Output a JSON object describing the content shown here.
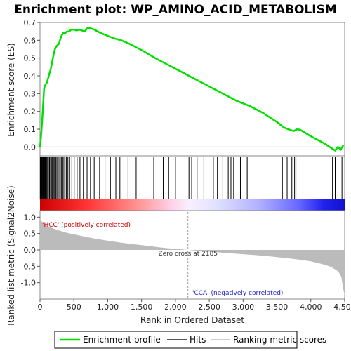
{
  "chart_data": {
    "type": "line",
    "title": "Enrichment plot: WP_AMINO_ACID_METABOLISM",
    "xlabel": "Rank in Ordered Dataset",
    "xlim": [
      0,
      4500
    ],
    "x_ticks": [
      "0",
      "500",
      "1,000",
      "1,500",
      "2,000",
      "2,500",
      "3,000",
      "3,500",
      "4,000",
      "4,500"
    ],
    "es_panel": {
      "ylabel": "Enrichment score (ES)",
      "ylim": [
        -0.05,
        0.7
      ],
      "y_ticks": [
        "0.0",
        "0.1",
        "0.2",
        "0.3",
        "0.4",
        "0.5",
        "0.6",
        "0.7"
      ],
      "series_name": "Enrichment profile",
      "color": "#00e000",
      "x": [
        0,
        20,
        40,
        60,
        80,
        100,
        130,
        160,
        190,
        220,
        250,
        280,
        310,
        340,
        370,
        400,
        430,
        460,
        500,
        540,
        580,
        620,
        660,
        700,
        740,
        800,
        900,
        1000,
        1100,
        1200,
        1320,
        1500,
        1700,
        1900,
        2100,
        2300,
        2500,
        2700,
        2900,
        3100,
        3300,
        3500,
        3600,
        3700,
        3750,
        3800,
        3850,
        4000,
        4200,
        4320,
        4360,
        4400,
        4440,
        4480
      ],
      "y": [
        0.0,
        0.08,
        0.2,
        0.33,
        0.35,
        0.36,
        0.4,
        0.44,
        0.5,
        0.55,
        0.57,
        0.58,
        0.62,
        0.64,
        0.64,
        0.65,
        0.65,
        0.66,
        0.66,
        0.655,
        0.66,
        0.655,
        0.65,
        0.668,
        0.668,
        0.66,
        0.64,
        0.625,
        0.61,
        0.6,
        0.58,
        0.545,
        0.5,
        0.46,
        0.42,
        0.38,
        0.34,
        0.3,
        0.26,
        0.23,
        0.19,
        0.14,
        0.11,
        0.095,
        0.09,
        0.1,
        0.095,
        0.06,
        0.02,
        -0.01,
        -0.02,
        0.0,
        -0.015,
        0.01
      ]
    },
    "hits": {
      "series_name": "Hits",
      "positions": [
        5,
        12,
        18,
        25,
        30,
        38,
        44,
        52,
        60,
        68,
        75,
        82,
        90,
        100,
        112,
        125,
        140,
        155,
        168,
        180,
        192,
        205,
        218,
        232,
        248,
        262,
        280,
        300,
        318,
        335,
        352,
        370,
        390,
        412,
        438,
        470,
        505,
        548,
        590,
        640,
        695,
        745,
        800,
        880,
        960,
        1040,
        1120,
        1180,
        1300,
        1420,
        1680,
        1820,
        1900,
        2000,
        2200,
        2240,
        2320,
        2420,
        2560,
        2620,
        2700,
        2780,
        2820,
        2860,
        2960,
        3060,
        3580,
        3650,
        3720,
        3760,
        3780,
        4320,
        4360,
        4460
      ]
    },
    "ranked_metric_panel": {
      "ylabel": "Ranked list metric (Signal2Noise)",
      "ylim": [
        -1.5,
        1.2
      ],
      "y_ticks": [
        "-1.0",
        "-0.5",
        "0.0",
        "0.5",
        "1.0"
      ],
      "series_name": "Ranking metric scores",
      "x": [
        0,
        20,
        60,
        100,
        200,
        300,
        400,
        600,
        800,
        1000,
        1200,
        1400,
        1600,
        1800,
        2000,
        2185,
        2400,
        2600,
        2800,
        3000,
        3200,
        3400,
        3600,
        3800,
        4000,
        4200,
        4300,
        4400,
        4450,
        4480,
        4500
      ],
      "y": [
        0.95,
        0.88,
        0.8,
        0.74,
        0.65,
        0.58,
        0.52,
        0.43,
        0.35,
        0.28,
        0.22,
        0.17,
        0.12,
        0.07,
        0.03,
        0.0,
        -0.04,
        -0.07,
        -0.1,
        -0.13,
        -0.16,
        -0.2,
        -0.24,
        -0.29,
        -0.35,
        -0.45,
        -0.52,
        -0.65,
        -0.82,
        -1.2,
        -1.4
      ],
      "zero_cross_label": "Zero cross at 2185",
      "zero_cross_rank": 2185,
      "positive_label": "'HCC' (positively correlated)",
      "negative_label": "'CCA' (negatively correlated)"
    },
    "legend": {
      "placement": "bottom",
      "entries": [
        "Enrichment profile",
        "Hits",
        "Ranking metric scores"
      ]
    },
    "colors": {
      "positive": "#dd0000",
      "negative": "#2222ff",
      "profile": "#00e000",
      "metric": "#bbbbbb",
      "positive_label": "#cc0000",
      "negative_label": "#2222cc"
    }
  }
}
